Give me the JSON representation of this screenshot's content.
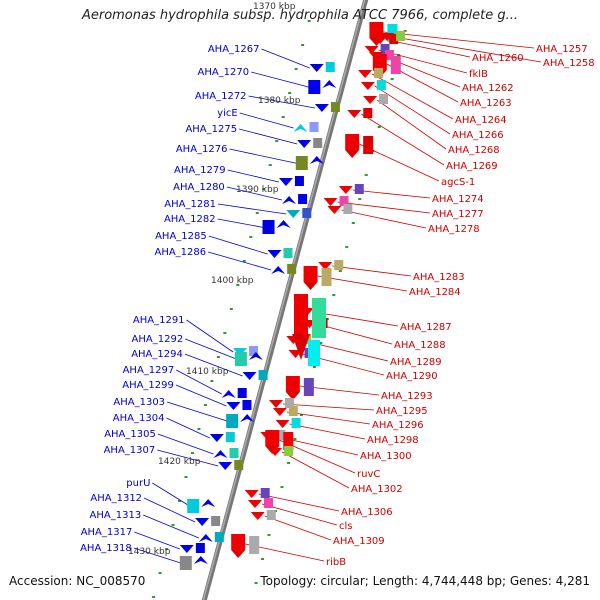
{
  "header": {
    "title": "Aeromonas hydrophila subsp. hydrophila ATCC 7966, complete g..."
  },
  "footer": {
    "accession": "Accession: NC_008570",
    "topology": "Topology: circular; Length: 4,744,448 bp; Genes: 4,281"
  },
  "map": {
    "colors": {
      "forward_label": "#0000cc",
      "reverse_label": "#cc0000",
      "backbone": "#888888"
    },
    "ticks": [
      "1370 kbp",
      "1380 kbp",
      "1390 kbp",
      "1400 kbp",
      "1410 kbp",
      "1420 kbp",
      "1430 kbp"
    ],
    "forward_genes": [
      "AHA_1267",
      "AHA_1270",
      "AHA_1272",
      "yicE",
      "AHA_1275",
      "AHA_1276",
      "AHA_1279",
      "AHA_1280",
      "AHA_1281",
      "AHA_1282",
      "AHA_1285",
      "AHA_1286",
      "AHA_1291",
      "AHA_1292",
      "AHA_1294",
      "AHA_1297",
      "AHA_1299",
      "AHA_1303",
      "AHA_1304",
      "AHA_1305",
      "AHA_1307",
      "purU",
      "AHA_1312",
      "AHA_1313",
      "AHA_1317",
      "AHA_1318"
    ],
    "reverse_genes": [
      "AHA_1257",
      "AHA_1260",
      "AHA_1258",
      "fklB",
      "AHA_1262",
      "AHA_1263",
      "AHA_1264",
      "AHA_1266",
      "AHA_1268",
      "AHA_1269",
      "agcS-1",
      "AHA_1274",
      "AHA_1277",
      "AHA_1278",
      "AHA_1283",
      "AHA_1284",
      "AHA_1287",
      "AHA_1288",
      "AHA_1289",
      "AHA_1290",
      "AHA_1293",
      "AHA_1295",
      "AHA_1296",
      "AHA_1298",
      "AHA_1300",
      "ruvC",
      "AHA_1302",
      "AHA_1306",
      "cls",
      "AHA_1309",
      "ribB"
    ]
  }
}
